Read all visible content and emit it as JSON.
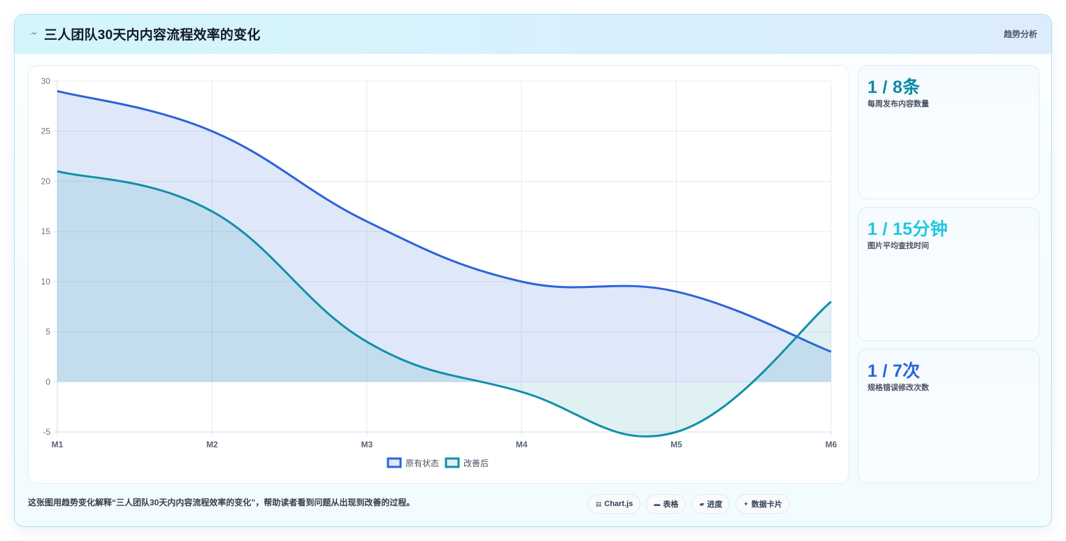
{
  "header": {
    "title": "三人团队30天内内容流程效率的变化",
    "tag": "趋势分析"
  },
  "stats": [
    {
      "value": "1 / 8条",
      "label": "每周发布内容数量",
      "color": "#0e8aa8"
    },
    {
      "value": "1 / 15分钟",
      "label": "图片平均查找时间",
      "color": "#22c7e0"
    },
    {
      "value": "1 / 7次",
      "label": "规格错误修改次数",
      "color": "#2b63d9"
    }
  ],
  "footer": {
    "text": "这张图用趋势变化解释“三人团队30天内内容流程效率的变化”，帮助读者看到问题从出现到改善的过程。",
    "pills": [
      {
        "icon": "chart-icon",
        "glyph": "▤",
        "label": "Chart.js"
      },
      {
        "icon": "table-icon",
        "glyph": "▬",
        "label": "表格"
      },
      {
        "icon": "progress-icon",
        "glyph": "▰",
        "label": "进度"
      },
      {
        "icon": "card-icon",
        "glyph": "✦",
        "label": "数据卡片"
      }
    ]
  },
  "chart_data": {
    "type": "area",
    "categories": [
      "M1",
      "M2",
      "M3",
      "M4",
      "M5",
      "M6"
    ],
    "series": [
      {
        "name": "原有状态",
        "values": [
          29,
          25,
          16,
          10,
          9,
          3
        ],
        "color": "#2b63d9",
        "fill": "rgba(43,99,217,0.15)"
      },
      {
        "name": "改善后",
        "values": [
          21,
          17,
          4,
          -1,
          -5,
          8
        ],
        "color": "#1190a8",
        "fill": "rgba(17,144,168,0.13)"
      }
    ],
    "ylim": [
      -5,
      30
    ],
    "yticks": [
      30,
      25,
      20,
      15,
      10,
      5,
      0,
      -5
    ],
    "grid": true,
    "legend": "bottom-center",
    "fill_origin": 0
  }
}
